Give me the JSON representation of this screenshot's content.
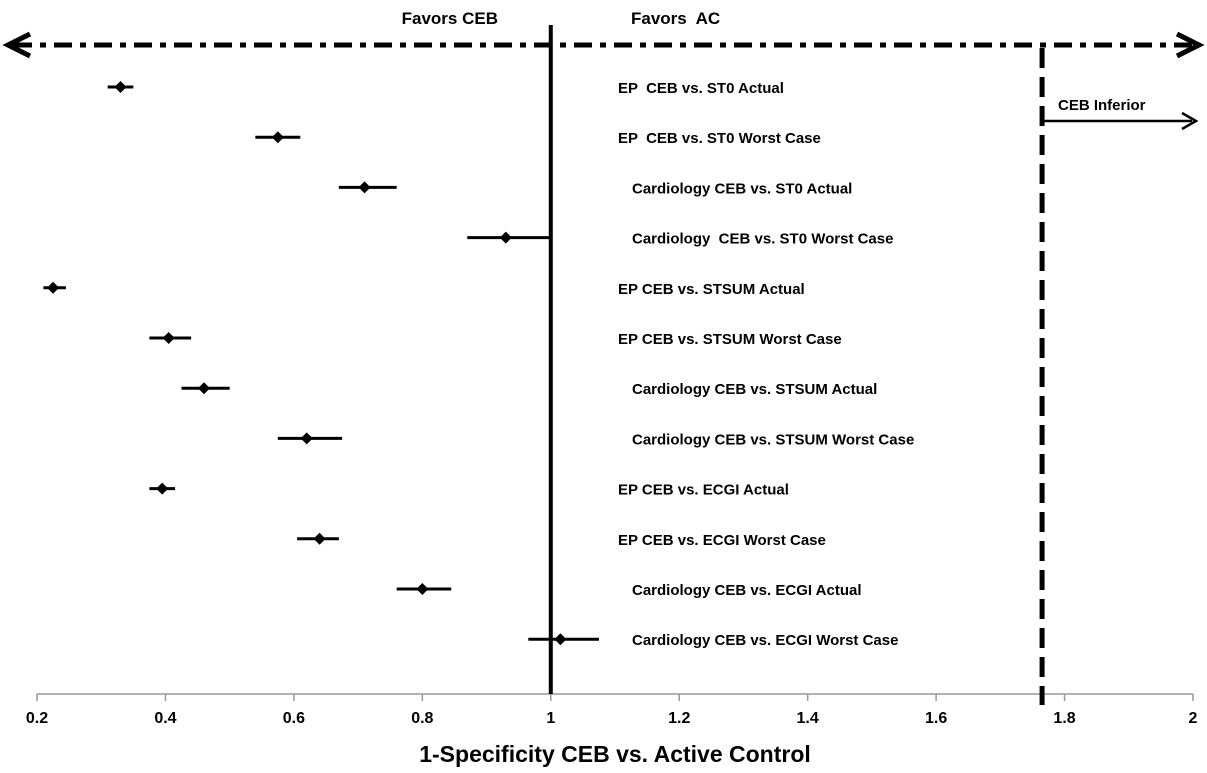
{
  "chart_data": {
    "type": "forest",
    "xlabel": "1-Specificity CEB vs. Active Control",
    "xlim": [
      0.2,
      2
    ],
    "xticks": [
      0.2,
      0.4,
      0.6,
      0.8,
      1,
      1.2,
      1.4,
      1.6,
      1.8,
      2
    ],
    "xtick_labels": [
      "0.2",
      "0.4",
      "0.6",
      "0.8",
      "1",
      "1.2",
      "1.4",
      "1.6",
      "1.8",
      "2"
    ],
    "reference_line": 1,
    "inferiority_margin": 1.765,
    "favors_left": "Favors CEB",
    "favors_right": "Favors  AC",
    "annotation": "CEB Inferior",
    "rows": [
      {
        "label": "EP  CEB vs. ST0 Actual",
        "estimate": 0.33,
        "low": 0.31,
        "high": 0.35
      },
      {
        "label": "EP  CEB vs. ST0 Worst Case",
        "estimate": 0.575,
        "low": 0.54,
        "high": 0.61
      },
      {
        "label": "Cardiology CEB vs. ST0 Actual",
        "estimate": 0.71,
        "low": 0.67,
        "high": 0.76
      },
      {
        "label": "Cardiology  CEB vs. ST0 Worst Case",
        "estimate": 0.93,
        "low": 0.87,
        "high": 1.0
      },
      {
        "label": "EP CEB vs. STSUM Actual",
        "estimate": 0.225,
        "low": 0.21,
        "high": 0.245
      },
      {
        "label": "EP CEB vs. STSUM Worst Case",
        "estimate": 0.405,
        "low": 0.375,
        "high": 0.44
      },
      {
        "label": "Cardiology CEB vs. STSUM Actual",
        "estimate": 0.46,
        "low": 0.425,
        "high": 0.5
      },
      {
        "label": "Cardiology CEB vs. STSUM Worst Case",
        "estimate": 0.62,
        "low": 0.575,
        "high": 0.675
      },
      {
        "label": "EP CEB vs. ECGI Actual",
        "estimate": 0.395,
        "low": 0.375,
        "high": 0.415
      },
      {
        "label": "EP CEB vs. ECGI Worst Case",
        "estimate": 0.64,
        "low": 0.605,
        "high": 0.67
      },
      {
        "label": "Cardiology CEB vs. ECGI Actual",
        "estimate": 0.8,
        "low": 0.76,
        "high": 0.845
      },
      {
        "label": "Cardiology CEB vs. ECGI Worst Case",
        "estimate": 1.015,
        "low": 0.965,
        "high": 1.075
      }
    ]
  }
}
